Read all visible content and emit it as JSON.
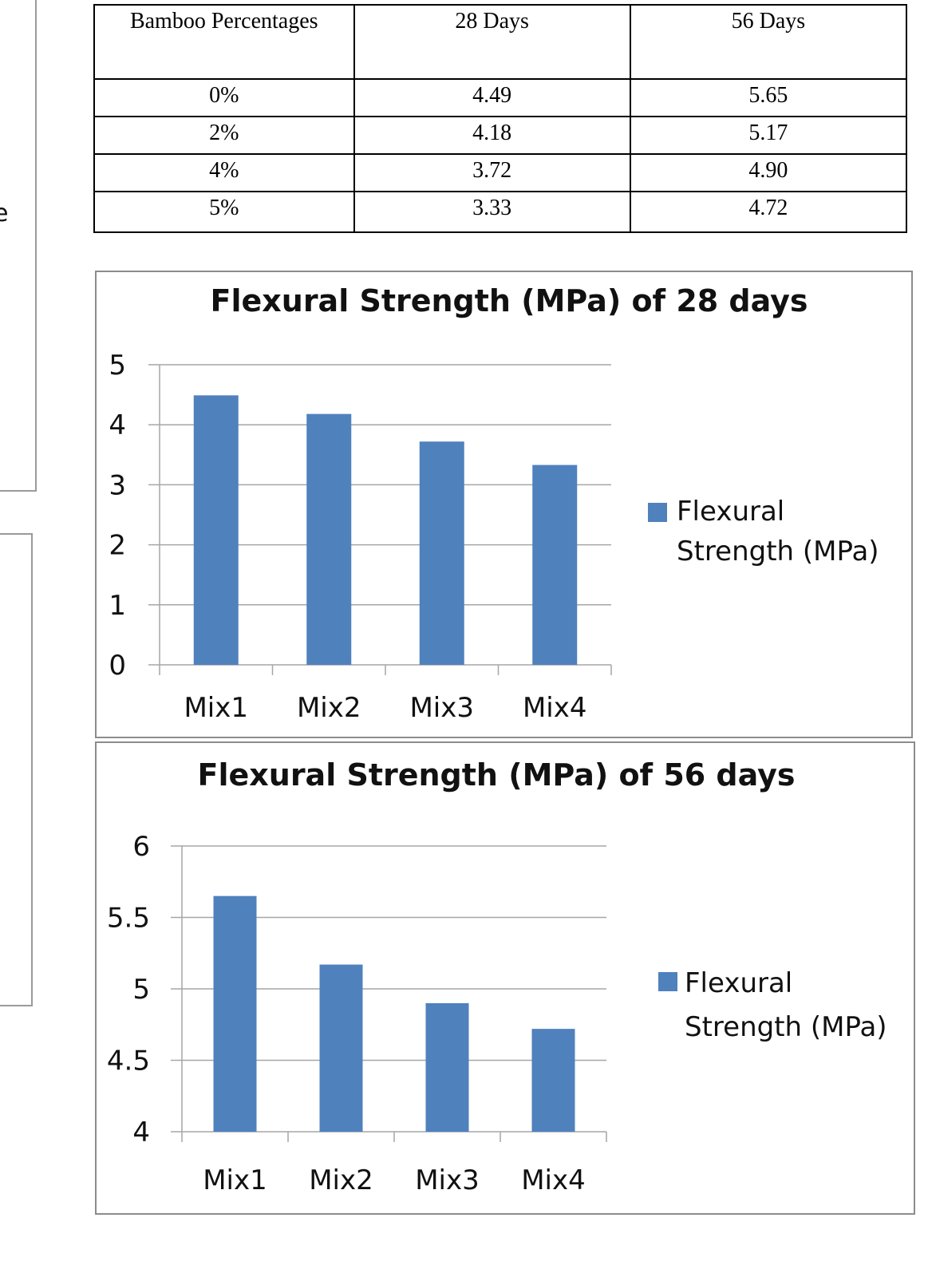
{
  "edge_fragment": "e",
  "table": {
    "headers": [
      "Bamboo Percentages",
      "28 Days",
      "56 Days"
    ],
    "rows": [
      [
        "0%",
        "4.49",
        "5.65"
      ],
      [
        "2%",
        "4.18",
        "5.17"
      ],
      [
        "4%",
        "3.72",
        "4.90"
      ],
      [
        "5%",
        "3.33",
        "4.72"
      ]
    ]
  },
  "chart_data": [
    {
      "type": "bar",
      "title": "Flexural Strength (MPa) of 28 days",
      "categories": [
        "Mix1",
        "Mix2",
        "Mix3",
        "Mix4"
      ],
      "series": [
        {
          "name": "Flexural Strength (MPa)",
          "values": [
            4.49,
            4.18,
            3.72,
            3.33
          ]
        }
      ],
      "ylim": [
        0,
        5
      ],
      "yticks": [
        "0",
        "1",
        "2",
        "3",
        "4",
        "5"
      ],
      "ytick_values": [
        0,
        1,
        2,
        3,
        4,
        5
      ],
      "grid": true,
      "legend": "right",
      "color": "#4f81bd"
    },
    {
      "type": "bar",
      "title": "Flexural Strength (MPa) of 56 days",
      "categories": [
        "Mix1",
        "Mix2",
        "Mix3",
        "Mix4"
      ],
      "series": [
        {
          "name": "Flexural Strength (MPa)",
          "values": [
            5.65,
            5.17,
            4.9,
            4.72
          ]
        }
      ],
      "ylim": [
        4,
        6
      ],
      "yticks": [
        "4",
        "4.5",
        "5",
        "5.5",
        "6"
      ],
      "ytick_values": [
        4,
        4.5,
        5,
        5.5,
        6
      ],
      "grid": true,
      "legend": "right",
      "color": "#4f81bd"
    }
  ],
  "legend_lines": [
    "Flexural",
    "Strength (MPa)"
  ]
}
